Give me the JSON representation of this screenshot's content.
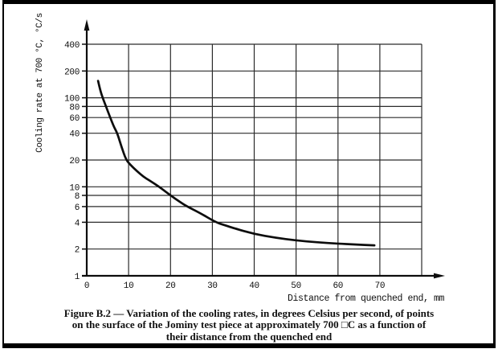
{
  "figure": {
    "caption": {
      "lines": [
        "Figure B.2 — Variation of the cooling rates, in degrees Celsius per second, of points",
        "on the surface of the Jominy test piece at approximately 700 □C as a function of",
        "their distance from the quenched end"
      ]
    }
  },
  "chart_data": {
    "type": "line",
    "title": "",
    "xlabel": "Distance from quenched end, mm",
    "ylabel": "Cooling rate at 700 °C, °C/s",
    "x_ticks": [
      0,
      10,
      20,
      30,
      40,
      50,
      60,
      70
    ],
    "xlim": [
      0,
      80
    ],
    "x_grid_step": 10,
    "y_scale": "log",
    "y_ticks": [
      1,
      2,
      4,
      6,
      8,
      10,
      20,
      40,
      60,
      80,
      100,
      200,
      400
    ],
    "ylim": [
      1,
      400
    ],
    "grid": true,
    "legend": false,
    "ink_color": "#0d0d0d",
    "grid_color": "#2b2b2b",
    "series": [
      {
        "name": "cooling-rate-at-700C",
        "x": [
          2.7,
          3.2,
          3.8,
          4.6,
          5.6,
          6.5,
          7.3,
          8.3,
          9.4,
          10.5,
          12,
          13.5,
          15,
          17.3,
          20,
          22,
          24,
          27,
          30.8,
          33,
          35,
          40,
          45,
          50,
          55,
          60,
          64,
          68.7
        ],
        "y": [
          155,
          122,
          100,
          80,
          60,
          47,
          40,
          28,
          20,
          17.5,
          15,
          13,
          11.8,
          10,
          8,
          6.9,
          6,
          5.1,
          4,
          3.7,
          3.45,
          2.95,
          2.68,
          2.5,
          2.38,
          2.3,
          2.25,
          2.2
        ]
      }
    ]
  }
}
